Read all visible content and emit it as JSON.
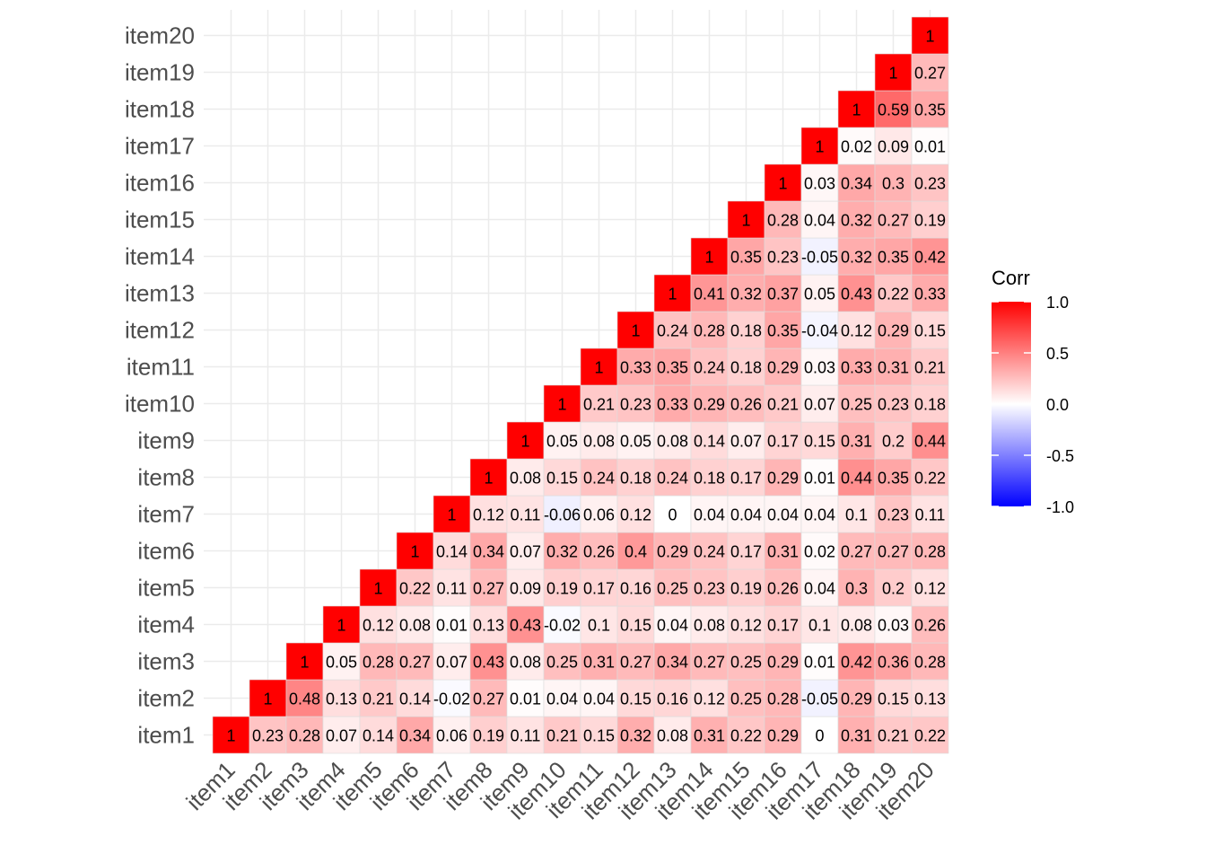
{
  "chart_data": {
    "type": "heatmap",
    "title": "",
    "xlabel": "",
    "ylabel": "",
    "categories": [
      "item1",
      "item2",
      "item3",
      "item4",
      "item5",
      "item6",
      "item7",
      "item8",
      "item9",
      "item10",
      "item11",
      "item12",
      "item13",
      "item14",
      "item15",
      "item16",
      "item17",
      "item18",
      "item19",
      "item20"
    ],
    "matrix_shape": "upper-triangle",
    "values": [
      [
        1,
        0.23,
        0.28,
        0.07,
        0.14,
        0.34,
        0.06,
        0.19,
        0.11,
        0.21,
        0.15,
        0.32,
        0.08,
        0.31,
        0.22,
        0.29,
        0,
        0.31,
        0.21,
        0.22
      ],
      [
        null,
        1,
        0.48,
        0.13,
        0.21,
        0.14,
        -0.02,
        0.27,
        0.01,
        0.04,
        0.04,
        0.15,
        0.16,
        0.12,
        0.25,
        0.28,
        -0.05,
        0.29,
        0.15,
        0.13
      ],
      [
        null,
        null,
        1,
        0.05,
        0.28,
        0.27,
        0.07,
        0.43,
        0.08,
        0.25,
        0.31,
        0.27,
        0.34,
        0.27,
        0.25,
        0.29,
        0.01,
        0.42,
        0.36,
        0.28
      ],
      [
        null,
        null,
        null,
        1,
        0.12,
        0.08,
        0.01,
        0.13,
        0.43,
        -0.02,
        0.1,
        0.15,
        0.04,
        0.08,
        0.12,
        0.17,
        0.1,
        0.08,
        0.03,
        0.26
      ],
      [
        null,
        null,
        null,
        null,
        1,
        0.22,
        0.11,
        0.27,
        0.09,
        0.19,
        0.17,
        0.16,
        0.25,
        0.23,
        0.19,
        0.26,
        0.04,
        0.3,
        0.2,
        0.12
      ],
      [
        null,
        null,
        null,
        null,
        null,
        1,
        0.14,
        0.34,
        0.07,
        0.32,
        0.26,
        0.4,
        0.29,
        0.24,
        0.17,
        0.31,
        0.02,
        0.27,
        0.27,
        0.28
      ],
      [
        null,
        null,
        null,
        null,
        null,
        null,
        1,
        0.12,
        0.11,
        -0.06,
        0.06,
        0.12,
        0,
        0.04,
        0.04,
        0.04,
        0.04,
        0.1,
        0.23,
        0.11
      ],
      [
        null,
        null,
        null,
        null,
        null,
        null,
        null,
        1,
        0.08,
        0.15,
        0.24,
        0.18,
        0.24,
        0.18,
        0.17,
        0.29,
        0.01,
        0.44,
        0.35,
        0.22
      ],
      [
        null,
        null,
        null,
        null,
        null,
        null,
        null,
        null,
        1,
        0.05,
        0.08,
        0.05,
        0.08,
        0.14,
        0.07,
        0.17,
        0.15,
        0.31,
        0.2,
        0.44
      ],
      [
        null,
        null,
        null,
        null,
        null,
        null,
        null,
        null,
        null,
        1,
        0.21,
        0.23,
        0.33,
        0.29,
        0.26,
        0.21,
        0.07,
        0.25,
        0.23,
        0.18
      ],
      [
        null,
        null,
        null,
        null,
        null,
        null,
        null,
        null,
        null,
        null,
        1,
        0.33,
        0.35,
        0.24,
        0.18,
        0.29,
        0.03,
        0.33,
        0.31,
        0.21
      ],
      [
        null,
        null,
        null,
        null,
        null,
        null,
        null,
        null,
        null,
        null,
        null,
        1,
        0.24,
        0.28,
        0.18,
        0.35,
        -0.04,
        0.12,
        0.29,
        0.15
      ],
      [
        null,
        null,
        null,
        null,
        null,
        null,
        null,
        null,
        null,
        null,
        null,
        null,
        1,
        0.41,
        0.32,
        0.37,
        0.05,
        0.43,
        0.22,
        0.33
      ],
      [
        null,
        null,
        null,
        null,
        null,
        null,
        null,
        null,
        null,
        null,
        null,
        null,
        null,
        1,
        0.35,
        0.23,
        -0.05,
        0.32,
        0.35,
        0.42
      ],
      [
        null,
        null,
        null,
        null,
        null,
        null,
        null,
        null,
        null,
        null,
        null,
        null,
        null,
        null,
        1,
        0.28,
        0.04,
        0.32,
        0.27,
        0.19
      ],
      [
        null,
        null,
        null,
        null,
        null,
        null,
        null,
        null,
        null,
        null,
        null,
        null,
        null,
        null,
        null,
        1,
        0.03,
        0.34,
        0.3,
        0.23
      ],
      [
        null,
        null,
        null,
        null,
        null,
        null,
        null,
        null,
        null,
        null,
        null,
        null,
        null,
        null,
        null,
        null,
        1,
        0.02,
        0.09,
        0.01
      ],
      [
        null,
        null,
        null,
        null,
        null,
        null,
        null,
        null,
        null,
        null,
        null,
        null,
        null,
        null,
        null,
        null,
        null,
        1,
        0.59,
        0.35
      ],
      [
        null,
        null,
        null,
        null,
        null,
        null,
        null,
        null,
        null,
        null,
        null,
        null,
        null,
        null,
        null,
        null,
        null,
        null,
        1,
        0.27
      ],
      [
        null,
        null,
        null,
        null,
        null,
        null,
        null,
        null,
        null,
        null,
        null,
        null,
        null,
        null,
        null,
        null,
        null,
        null,
        null,
        1
      ]
    ],
    "color_scale": {
      "low": "#0000ff",
      "mid": "#ffffff",
      "high": "#ff0000",
      "range": [
        -1,
        1
      ]
    },
    "grid": true,
    "legend": {
      "title": "Corr",
      "placement": "right",
      "ticks": [
        "1.0",
        "0.5",
        "0.0",
        "-0.5",
        "-1.0"
      ]
    }
  }
}
